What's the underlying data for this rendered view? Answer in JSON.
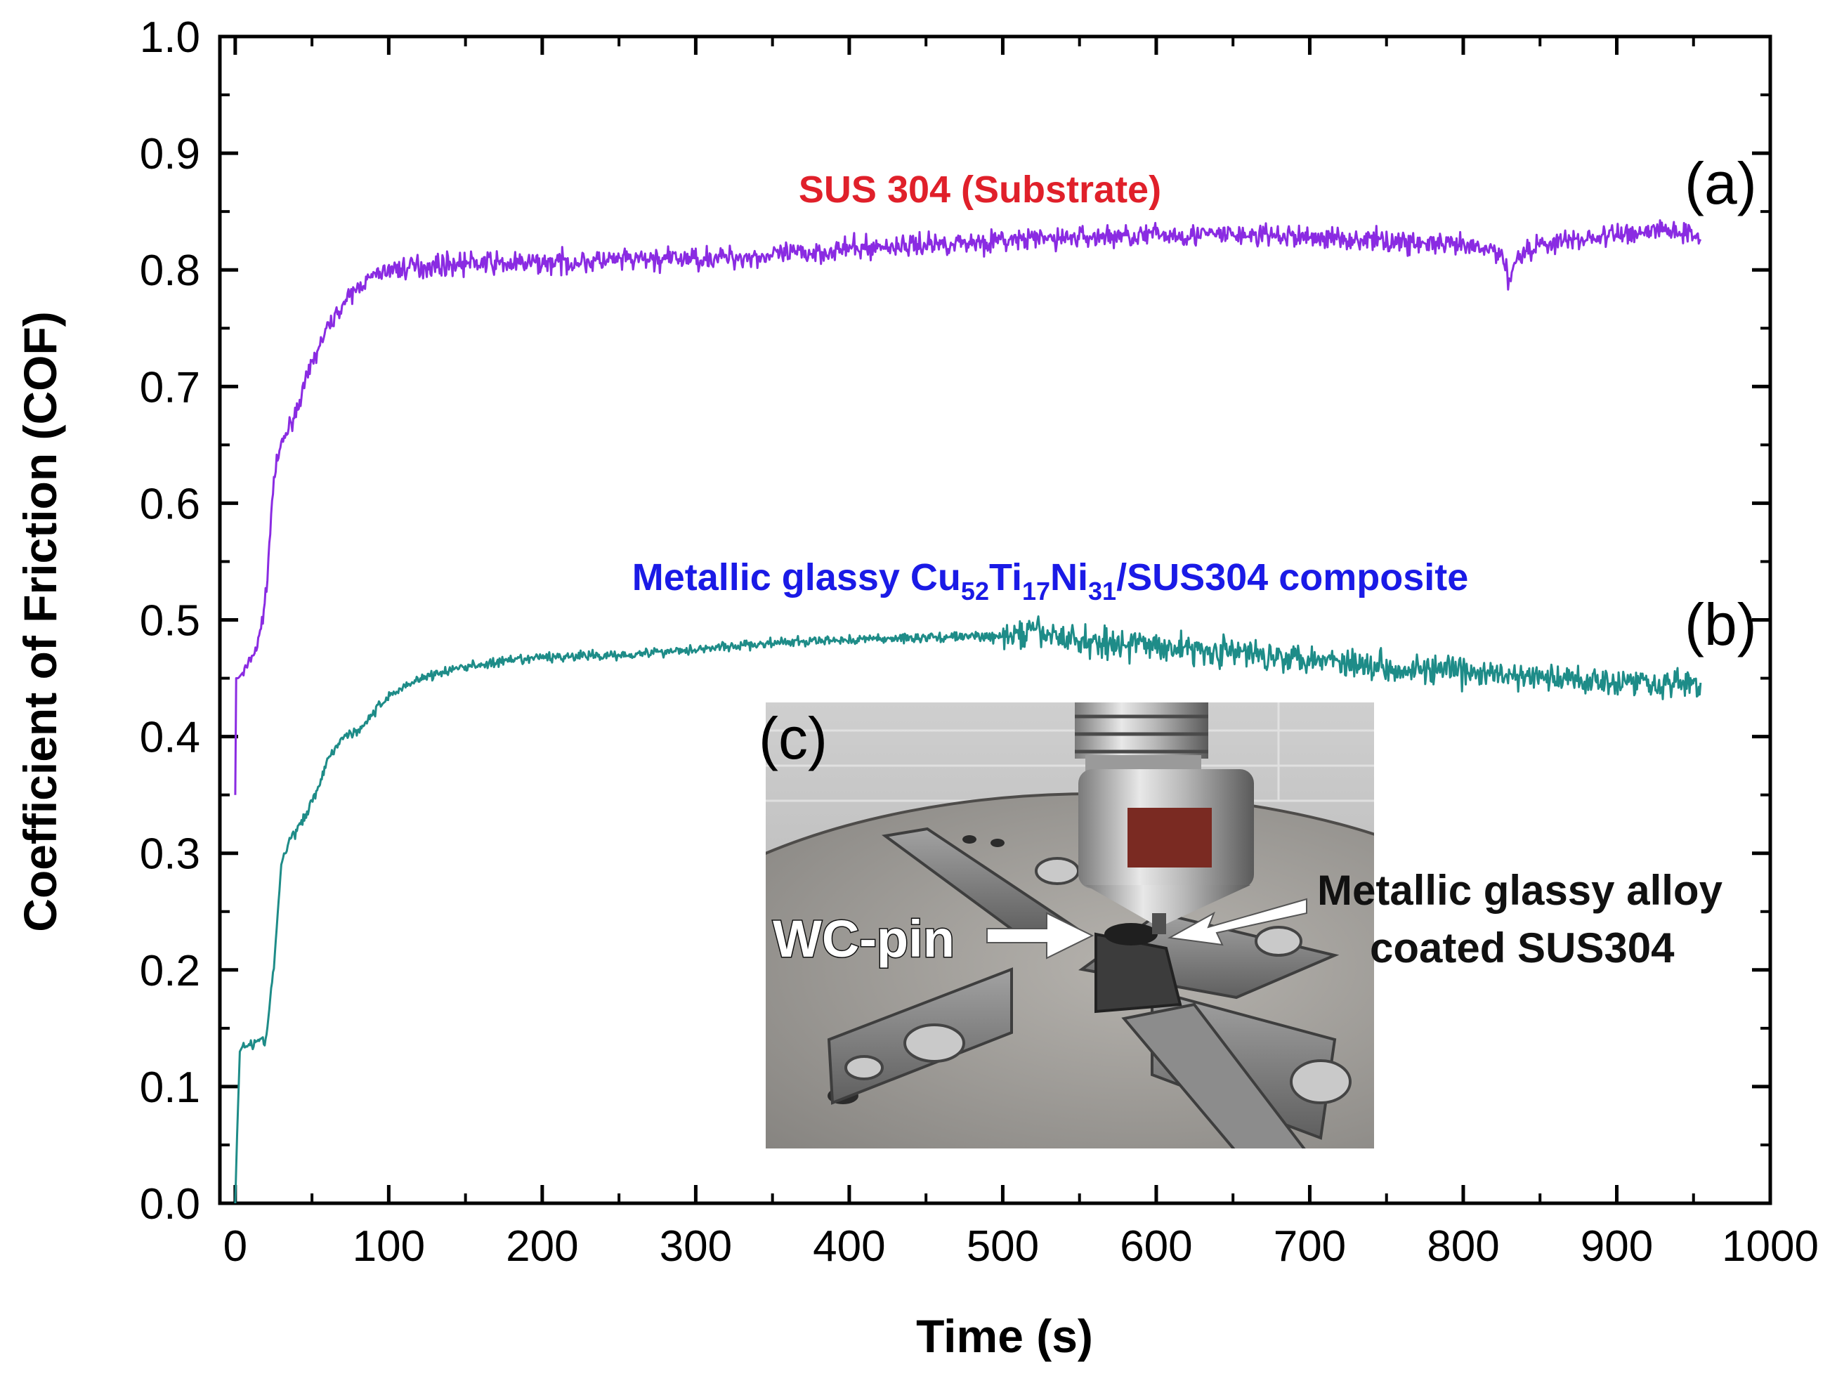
{
  "chart_data": {
    "type": "line",
    "title": "",
    "xlabel": "Time (s)",
    "ylabel": "Coefficient of Friction (COF)",
    "xlim": [
      -10,
      1000
    ],
    "ylim": [
      0.0,
      1.0
    ],
    "xticks": [
      0,
      100,
      200,
      300,
      400,
      500,
      600,
      700,
      800,
      900,
      1000
    ],
    "xtick_labels": [
      "0",
      "100",
      "200",
      "300",
      "400",
      "500",
      "600",
      "700",
      "800",
      "900",
      "1000"
    ],
    "yticks": [
      0.0,
      0.1,
      0.2,
      0.3,
      0.4,
      0.5,
      0.6,
      0.7,
      0.8,
      0.9,
      1.0
    ],
    "ytick_labels": [
      "0.0",
      "0.1",
      "0.2",
      "0.3",
      "0.4",
      "0.5",
      "0.6",
      "0.7",
      "0.8",
      "0.9",
      "1.0"
    ],
    "grid": false,
    "series": [
      {
        "name": "SUS 304 (Substrate)",
        "panel": "(a)",
        "color": "#8A2BE2",
        "label_color": "#E0202A",
        "noise": 0.009,
        "x": [
          0,
          0.5,
          2,
          8,
          15,
          20,
          25,
          30,
          40,
          50,
          60,
          70,
          80,
          90,
          100,
          120,
          140,
          160,
          180,
          200,
          250,
          300,
          350,
          400,
          450,
          500,
          550,
          600,
          650,
          700,
          750,
          800,
          825,
          830,
          835,
          850,
          900,
          930,
          955
        ],
        "values": [
          0.35,
          0.45,
          0.45,
          0.46,
          0.48,
          0.52,
          0.62,
          0.65,
          0.68,
          0.72,
          0.75,
          0.77,
          0.785,
          0.795,
          0.8,
          0.803,
          0.805,
          0.806,
          0.805,
          0.806,
          0.808,
          0.81,
          0.812,
          0.818,
          0.822,
          0.825,
          0.828,
          0.83,
          0.83,
          0.828,
          0.825,
          0.82,
          0.815,
          0.79,
          0.812,
          0.822,
          0.83,
          0.835,
          0.83
        ]
      },
      {
        "name": "Metallic glassy Cu52Ti17Ni31/SUS304 composite",
        "panel": "(b)",
        "color": "#1E8C88",
        "label_color": "#1A1AE6",
        "noise_before_500": 0.004,
        "noise_after_500": 0.012,
        "x": [
          0,
          1,
          3,
          5,
          20,
          25,
          30,
          35,
          45,
          55,
          60,
          70,
          80,
          90,
          100,
          120,
          150,
          200,
          250,
          300,
          350,
          400,
          450,
          480,
          500,
          520,
          550,
          600,
          650,
          700,
          750,
          800,
          850,
          900,
          955
        ],
        "values": [
          0.0,
          0.05,
          0.13,
          0.135,
          0.14,
          0.2,
          0.29,
          0.31,
          0.33,
          0.36,
          0.38,
          0.4,
          0.405,
          0.42,
          0.435,
          0.45,
          0.46,
          0.468,
          0.47,
          0.475,
          0.48,
          0.483,
          0.485,
          0.486,
          0.485,
          0.49,
          0.482,
          0.478,
          0.472,
          0.468,
          0.46,
          0.455,
          0.45,
          0.448,
          0.445
        ]
      }
    ],
    "annotations": [
      {
        "text": "SUS 304 (Substrate)",
        "near_series": "(a)"
      },
      {
        "text": "(a)"
      },
      {
        "text": "(b)"
      },
      {
        "text": "(c)"
      }
    ]
  },
  "series_labels": {
    "a": "SUS 304 (Substrate)",
    "b_prefix": "Metallic glassy Cu",
    "b_sub1": "52",
    "b_ti": "Ti",
    "b_sub2": "17",
    "b_ni": "Ni",
    "b_sub3": "31",
    "b_suffix": "/SUS304 composite"
  },
  "panel_labels": {
    "a": "(a)",
    "b": "(b)",
    "c": "(c)"
  },
  "inset": {
    "description_label_pin": "WC-pin",
    "label_coating_line1": "Metallic glassy alloy",
    "label_coating_line2": "coated SUS304"
  },
  "colors": {
    "series_a": "#8A2BE2",
    "series_b": "#1E8C88",
    "label_a": "#E0202A",
    "label_b": "#1A1AE6"
  }
}
